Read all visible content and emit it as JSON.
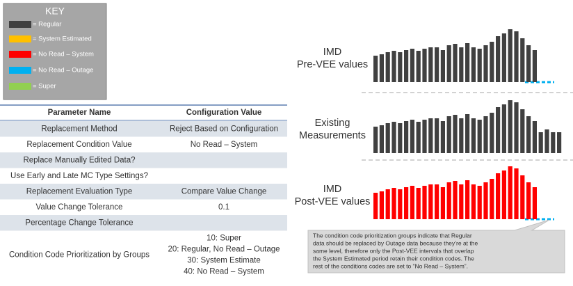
{
  "key": {
    "title": "KEY",
    "items": [
      {
        "label": "= Regular",
        "color": "#404040"
      },
      {
        "label": "= System Estimated",
        "color": "#ffc000"
      },
      {
        "label": "= No Read – System",
        "color": "#ff0000"
      },
      {
        "label": "= No Read – Outage",
        "color": "#00b0f0"
      },
      {
        "label": "= Super",
        "color": "#92d050"
      }
    ]
  },
  "table": {
    "headers": [
      "Parameter Name",
      "Configuration Value"
    ],
    "rows": [
      [
        "Replacement Method",
        [
          "Reject Based on Configuration"
        ]
      ],
      [
        "Replacement Condition Value",
        [
          "No Read – System"
        ]
      ],
      [
        "Replace Manually Edited Data?",
        []
      ],
      [
        "Use Early and Late MC Type Settings?",
        []
      ],
      [
        "Replacement Evaluation Type",
        [
          "Compare Value Change"
        ]
      ],
      [
        "Value Change Tolerance",
        [
          "0.1"
        ]
      ],
      [
        "Percentage Change Tolerance",
        []
      ],
      [
        "Condition Code Prioritization by Groups",
        [
          "10: Super",
          "20: Regular, No Read – Outage",
          "30: System Estimate",
          "40: No Read – System"
        ]
      ]
    ]
  },
  "panels": [
    {
      "label": [
        "IMD",
        "Pre-VEE values"
      ],
      "color": "#404040",
      "values": [
        38,
        40,
        43,
        45,
        43,
        46,
        48,
        45,
        48,
        50,
        50,
        46,
        53,
        55,
        50,
        56,
        50,
        48,
        53,
        58,
        66,
        70,
        76,
        73,
        63,
        53,
        46
      ]
    },
    {
      "label": [
        "Existing",
        "Measurements"
      ],
      "color": "#404040",
      "values": [
        38,
        40,
        43,
        45,
        43,
        46,
        48,
        45,
        48,
        50,
        50,
        46,
        53,
        55,
        50,
        56,
        50,
        48,
        53,
        58,
        66,
        70,
        76,
        73,
        63,
        53,
        46,
        30,
        34,
        30,
        30
      ]
    },
    {
      "label": [
        "IMD",
        "Post-VEE values"
      ],
      "color": "#ff0000",
      "values": [
        38,
        40,
        43,
        45,
        43,
        46,
        48,
        45,
        48,
        50,
        50,
        46,
        53,
        55,
        50,
        56,
        50,
        48,
        53,
        58,
        66,
        70,
        76,
        73,
        63,
        53,
        46
      ]
    }
  ],
  "note": [
    "The condition code prioritization groups indicate that Regular",
    "data should be replaced by Outage data because they’re at the",
    "same level, therefore only the Post-VEE intervals that overlap",
    "the System Estimated period retain their condition codes.  The",
    "rest of the conditions codes are set to “No Read – System”."
  ]
}
